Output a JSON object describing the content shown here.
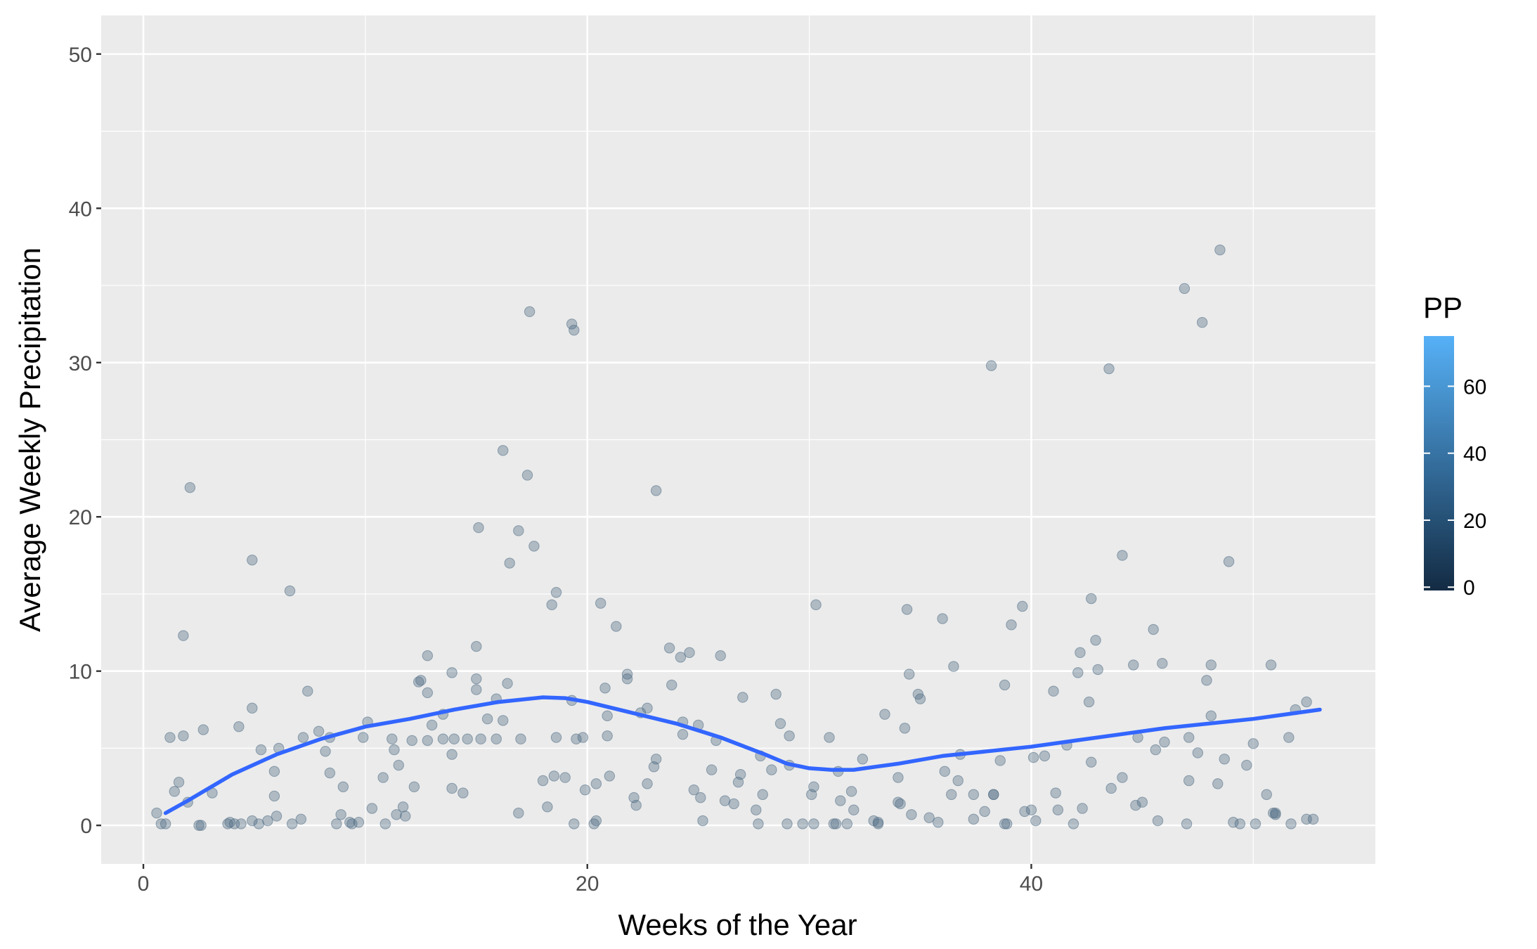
{
  "chart_data": {
    "type": "scatter",
    "title": "",
    "xlabel": "Weeks of the Year",
    "ylabel": "Average Weekly Precipitation",
    "xlim": [
      -1.9,
      55.5
    ],
    "ylim": [
      -2.5,
      52.5
    ],
    "x_ticks": [
      "0",
      "20",
      "40"
    ],
    "x_tick_values": [
      0,
      20,
      40
    ],
    "y_ticks": [
      "0",
      "10",
      "20",
      "30",
      "40",
      "50"
    ],
    "y_tick_values": [
      0,
      10,
      20,
      30,
      40,
      50
    ],
    "grid": true,
    "legend": {
      "title": "PP",
      "position": "right",
      "type": "colorbar",
      "range": [
        -1,
        75
      ],
      "labels": [
        "0",
        "20",
        "40",
        "60"
      ],
      "label_values": [
        0,
        20,
        40,
        60
      ],
      "low_color": "#132B43",
      "high_color": "#56B1F7"
    },
    "colors": {
      "panel_background": "#EBEBEB",
      "grid_major": "#FFFFFF",
      "points": "#4F6C84",
      "smooth_line": "#3366FF"
    },
    "points": [
      [
        0.6,
        0.8
      ],
      [
        0.8,
        0.1
      ],
      [
        1.0,
        0.1
      ],
      [
        1.2,
        5.7
      ],
      [
        1.4,
        2.2
      ],
      [
        1.6,
        2.8
      ],
      [
        1.8,
        12.3
      ],
      [
        1.8,
        5.8
      ],
      [
        2.0,
        1.5
      ],
      [
        2.1,
        21.9
      ],
      [
        2.5,
        0.0
      ],
      [
        2.6,
        0.0
      ],
      [
        2.7,
        6.2
      ],
      [
        3.1,
        2.1
      ],
      [
        3.8,
        0.1
      ],
      [
        3.9,
        0.2
      ],
      [
        4.1,
        0.1
      ],
      [
        4.3,
        6.4
      ],
      [
        4.4,
        0.1
      ],
      [
        4.9,
        17.2
      ],
      [
        4.9,
        7.6
      ],
      [
        4.9,
        0.3
      ],
      [
        5.2,
        0.1
      ],
      [
        5.3,
        4.9
      ],
      [
        5.6,
        0.3
      ],
      [
        5.9,
        3.5
      ],
      [
        5.9,
        1.9
      ],
      [
        6.0,
        0.6
      ],
      [
        6.1,
        5.0
      ],
      [
        6.6,
        15.2
      ],
      [
        6.7,
        0.1
      ],
      [
        7.1,
        0.4
      ],
      [
        7.2,
        5.7
      ],
      [
        7.4,
        8.7
      ],
      [
        7.9,
        6.1
      ],
      [
        8.2,
        4.8
      ],
      [
        8.4,
        5.7
      ],
      [
        8.4,
        3.4
      ],
      [
        8.7,
        0.1
      ],
      [
        8.9,
        0.7
      ],
      [
        9.0,
        2.5
      ],
      [
        9.3,
        0.2
      ],
      [
        9.4,
        0.1
      ],
      [
        9.7,
        0.2
      ],
      [
        9.9,
        5.7
      ],
      [
        10.1,
        6.7
      ],
      [
        10.3,
        1.1
      ],
      [
        10.8,
        3.1
      ],
      [
        10.9,
        0.1
      ],
      [
        11.2,
        5.6
      ],
      [
        11.3,
        4.9
      ],
      [
        11.4,
        0.7
      ],
      [
        11.5,
        3.9
      ],
      [
        11.7,
        1.2
      ],
      [
        11.8,
        0.6
      ],
      [
        12.1,
        5.5
      ],
      [
        12.2,
        2.5
      ],
      [
        12.4,
        9.3
      ],
      [
        12.5,
        9.4
      ],
      [
        12.8,
        8.6
      ],
      [
        12.8,
        11.0
      ],
      [
        12.8,
        5.5
      ],
      [
        13.0,
        6.5
      ],
      [
        13.5,
        7.2
      ],
      [
        13.5,
        5.6
      ],
      [
        13.9,
        9.9
      ],
      [
        13.9,
        4.6
      ],
      [
        13.9,
        2.4
      ],
      [
        14.0,
        5.6
      ],
      [
        14.4,
        2.1
      ],
      [
        14.6,
        5.6
      ],
      [
        15.0,
        11.6
      ],
      [
        15.0,
        8.8
      ],
      [
        15.0,
        9.5
      ],
      [
        15.1,
        19.3
      ],
      [
        15.2,
        5.6
      ],
      [
        15.5,
        6.9
      ],
      [
        15.9,
        8.2
      ],
      [
        15.9,
        5.6
      ],
      [
        16.2,
        24.3
      ],
      [
        16.2,
        6.8
      ],
      [
        16.4,
        9.2
      ],
      [
        16.5,
        17.0
      ],
      [
        16.9,
        19.1
      ],
      [
        16.9,
        0.8
      ],
      [
        17.0,
        5.6
      ],
      [
        17.3,
        22.7
      ],
      [
        17.4,
        33.3
      ],
      [
        17.6,
        18.1
      ],
      [
        18.0,
        2.9
      ],
      [
        18.2,
        1.2
      ],
      [
        18.4,
        14.3
      ],
      [
        18.5,
        3.2
      ],
      [
        18.6,
        15.1
      ],
      [
        18.6,
        5.7
      ],
      [
        19.0,
        3.1
      ],
      [
        19.3,
        8.1
      ],
      [
        19.3,
        32.5
      ],
      [
        19.4,
        32.1
      ],
      [
        19.4,
        0.1
      ],
      [
        19.5,
        5.6
      ],
      [
        19.8,
        5.7
      ],
      [
        19.9,
        2.3
      ],
      [
        20.3,
        0.1
      ],
      [
        20.4,
        0.3
      ],
      [
        20.4,
        2.7
      ],
      [
        20.6,
        14.4
      ],
      [
        20.8,
        8.9
      ],
      [
        20.9,
        5.8
      ],
      [
        20.9,
        7.1
      ],
      [
        21.0,
        3.2
      ],
      [
        21.3,
        12.9
      ],
      [
        21.8,
        9.8
      ],
      [
        21.8,
        9.5
      ],
      [
        22.1,
        1.8
      ],
      [
        22.2,
        1.3
      ],
      [
        22.4,
        7.3
      ],
      [
        22.7,
        7.6
      ],
      [
        22.7,
        2.7
      ],
      [
        23.0,
        3.8
      ],
      [
        23.1,
        4.3
      ],
      [
        23.1,
        21.7
      ],
      [
        23.7,
        11.5
      ],
      [
        23.8,
        9.1
      ],
      [
        24.2,
        10.9
      ],
      [
        24.3,
        6.7
      ],
      [
        24.3,
        5.9
      ],
      [
        24.6,
        11.2
      ],
      [
        24.8,
        2.3
      ],
      [
        25.0,
        6.5
      ],
      [
        25.1,
        1.8
      ],
      [
        25.2,
        0.3
      ],
      [
        25.6,
        3.6
      ],
      [
        25.8,
        5.5
      ],
      [
        26.0,
        11.0
      ],
      [
        26.2,
        1.6
      ],
      [
        26.6,
        1.4
      ],
      [
        26.8,
        2.8
      ],
      [
        26.9,
        3.3
      ],
      [
        27.0,
        8.3
      ],
      [
        27.6,
        1.0
      ],
      [
        27.7,
        0.1
      ],
      [
        27.8,
        4.5
      ],
      [
        27.9,
        2.0
      ],
      [
        28.3,
        3.6
      ],
      [
        28.5,
        8.5
      ],
      [
        28.7,
        6.6
      ],
      [
        29.0,
        0.1
      ],
      [
        29.1,
        3.9
      ],
      [
        29.1,
        5.8
      ],
      [
        29.7,
        0.1
      ],
      [
        30.1,
        2.0
      ],
      [
        30.2,
        2.5
      ],
      [
        30.2,
        0.1
      ],
      [
        30.3,
        14.3
      ],
      [
        30.9,
        5.7
      ],
      [
        31.1,
        0.1
      ],
      [
        31.2,
        0.1
      ],
      [
        31.3,
        3.5
      ],
      [
        31.4,
        1.6
      ],
      [
        31.7,
        0.1
      ],
      [
        31.9,
        2.2
      ],
      [
        32.0,
        1.0
      ],
      [
        32.4,
        4.3
      ],
      [
        32.9,
        0.3
      ],
      [
        33.1,
        0.1
      ],
      [
        33.1,
        0.2
      ],
      [
        33.4,
        7.2
      ],
      [
        34.0,
        3.1
      ],
      [
        34.0,
        1.5
      ],
      [
        34.1,
        1.4
      ],
      [
        34.3,
        6.3
      ],
      [
        34.4,
        14.0
      ],
      [
        34.5,
        9.8
      ],
      [
        34.6,
        0.7
      ],
      [
        34.9,
        8.5
      ],
      [
        35.0,
        8.2
      ],
      [
        35.4,
        0.5
      ],
      [
        35.8,
        0.2
      ],
      [
        36.0,
        13.4
      ],
      [
        36.1,
        3.5
      ],
      [
        36.4,
        2.0
      ],
      [
        36.5,
        10.3
      ],
      [
        36.7,
        2.9
      ],
      [
        36.8,
        4.6
      ],
      [
        37.4,
        2.0
      ],
      [
        37.4,
        0.4
      ],
      [
        37.9,
        0.9
      ],
      [
        38.2,
        29.8
      ],
      [
        38.3,
        2.0
      ],
      [
        38.3,
        2.0
      ],
      [
        38.6,
        4.2
      ],
      [
        38.8,
        9.1
      ],
      [
        38.8,
        0.1
      ],
      [
        38.9,
        0.1
      ],
      [
        39.1,
        13.0
      ],
      [
        39.6,
        14.2
      ],
      [
        39.7,
        0.9
      ],
      [
        40.0,
        1.0
      ],
      [
        40.1,
        4.4
      ],
      [
        40.2,
        0.3
      ],
      [
        40.6,
        4.5
      ],
      [
        41.0,
        8.7
      ],
      [
        41.1,
        2.1
      ],
      [
        41.2,
        1.0
      ],
      [
        41.6,
        5.2
      ],
      [
        41.9,
        0.1
      ],
      [
        42.1,
        9.9
      ],
      [
        42.2,
        11.2
      ],
      [
        42.3,
        1.1
      ],
      [
        42.6,
        8.0
      ],
      [
        42.7,
        14.7
      ],
      [
        42.7,
        4.1
      ],
      [
        42.9,
        12.0
      ],
      [
        43.0,
        10.1
      ],
      [
        43.5,
        29.6
      ],
      [
        43.6,
        2.4
      ],
      [
        44.1,
        17.5
      ],
      [
        44.1,
        3.1
      ],
      [
        44.6,
        10.4
      ],
      [
        44.7,
        1.3
      ],
      [
        44.8,
        5.7
      ],
      [
        45.0,
        1.5
      ],
      [
        45.5,
        12.7
      ],
      [
        45.6,
        4.9
      ],
      [
        45.7,
        0.3
      ],
      [
        45.9,
        10.5
      ],
      [
        46.0,
        5.4
      ],
      [
        46.9,
        34.8
      ],
      [
        47.0,
        0.1
      ],
      [
        47.1,
        2.9
      ],
      [
        47.1,
        5.7
      ],
      [
        47.5,
        4.7
      ],
      [
        47.7,
        32.6
      ],
      [
        47.9,
        9.4
      ],
      [
        48.1,
        10.4
      ],
      [
        48.1,
        7.1
      ],
      [
        48.4,
        2.7
      ],
      [
        48.5,
        37.3
      ],
      [
        48.7,
        4.3
      ],
      [
        48.9,
        17.1
      ],
      [
        49.1,
        0.2
      ],
      [
        49.4,
        0.1
      ],
      [
        49.7,
        3.9
      ],
      [
        50.0,
        5.3
      ],
      [
        50.1,
        0.1
      ],
      [
        50.6,
        2.0
      ],
      [
        50.8,
        10.4
      ],
      [
        50.9,
        0.8
      ],
      [
        51.0,
        0.8
      ],
      [
        51.0,
        0.7
      ],
      [
        51.6,
        5.7
      ],
      [
        51.7,
        0.1
      ],
      [
        51.9,
        7.5
      ],
      [
        52.4,
        8.0
      ],
      [
        52.4,
        0.4
      ],
      [
        52.7,
        0.4
      ]
    ],
    "smooth": {
      "x": [
        1,
        2,
        4,
        6,
        8,
        10,
        12,
        14,
        16,
        18,
        19,
        20,
        22,
        24,
        26,
        28,
        29,
        30,
        31,
        32,
        33,
        34,
        36,
        38,
        40,
        42,
        44,
        46,
        48,
        50,
        52,
        53
      ],
      "y": [
        0.8,
        1.6,
        3.3,
        4.6,
        5.6,
        6.4,
        6.9,
        7.5,
        8.0,
        8.3,
        8.25,
        8.0,
        7.3,
        6.6,
        5.7,
        4.6,
        4.0,
        3.7,
        3.6,
        3.6,
        3.8,
        4.0,
        4.5,
        4.8,
        5.1,
        5.5,
        5.9,
        6.3,
        6.6,
        6.9,
        7.3,
        7.5
      ]
    }
  }
}
